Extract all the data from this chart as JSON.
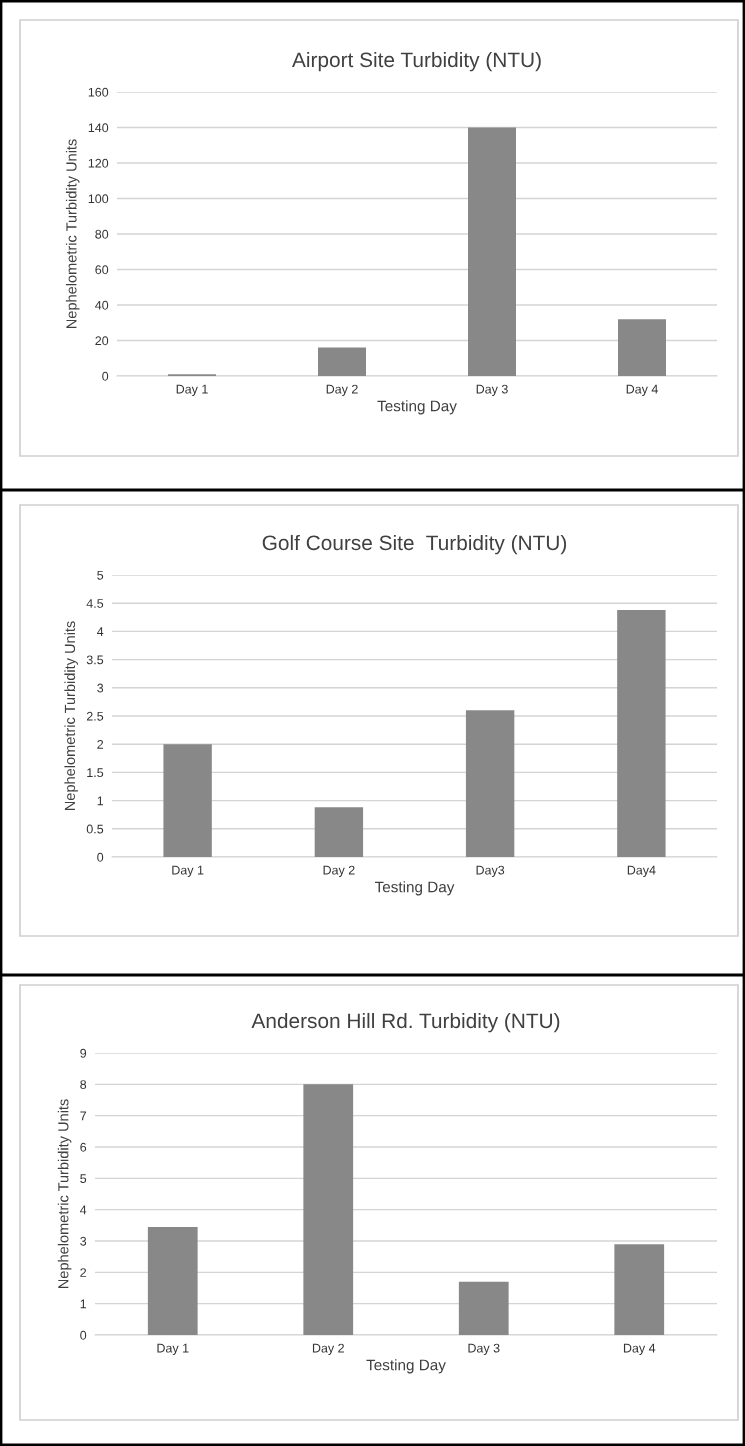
{
  "chart_data": [
    {
      "type": "bar",
      "title": "Airport Site Turbidity (NTU)",
      "xlabel": "Testing Day",
      "ylabel": "Nephelometric Turbidity Units",
      "categories": [
        "Day 1",
        "Day 2",
        "Day 3",
        "Day 4"
      ],
      "values": [
        1,
        16,
        140,
        32
      ],
      "color": "#888888",
      "ylim": [
        0,
        160
      ],
      "yticks": [
        0,
        20,
        40,
        60,
        80,
        100,
        120,
        140,
        160
      ],
      "grid": "y"
    },
    {
      "type": "bar",
      "title": "Golf Course Site  Turbidity (NTU)",
      "xlabel": "Testing Day",
      "ylabel": "Nephelometric Turbidity Units",
      "categories": [
        "Day 1",
        "Day 2",
        "Day3",
        "Day4"
      ],
      "values": [
        2,
        0.88,
        2.6,
        4.38
      ],
      "color": "#888888",
      "ylim": [
        0,
        5
      ],
      "yticks": [
        0,
        0.5,
        1,
        1.5,
        2,
        2.5,
        3,
        3.5,
        4,
        4.5,
        5
      ],
      "grid": "y"
    },
    {
      "type": "bar",
      "title": "Anderson Hill Rd. Turbidity (NTU)",
      "xlabel": "Testing Day",
      "ylabel": "Nephelometric Turbidity Units",
      "categories": [
        "Day 1",
        "Day 2",
        "Day 3",
        "Day 4"
      ],
      "values": [
        3.45,
        8,
        1.7,
        2.9
      ],
      "color": "#888888",
      "ylim": [
        0,
        9
      ],
      "yticks": [
        0,
        1,
        2,
        3,
        4,
        5,
        6,
        7,
        8,
        9
      ],
      "grid": "y"
    }
  ]
}
